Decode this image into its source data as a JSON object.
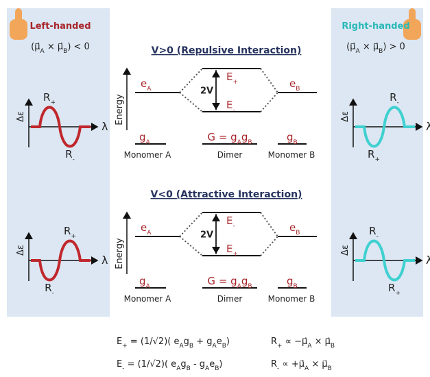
{
  "left": {
    "title": "Left-handed",
    "condition": [
      "(μ⃗",
      "A",
      " × μ⃗",
      "B",
      ") < 0"
    ],
    "top": {
      "y_label": "Δε",
      "x_label": "λ",
      "upper": [
        "R",
        "+"
      ],
      "lower": [
        "R",
        "-"
      ]
    },
    "bottom": {
      "y_label": "Δε",
      "x_label": "λ",
      "upper": [
        "R",
        "+"
      ],
      "lower": [
        "R",
        "-"
      ]
    }
  },
  "right": {
    "title": "Right-handed",
    "condition": [
      "(μ⃗",
      "A",
      " × μ⃗",
      "B",
      ") > 0"
    ],
    "top": {
      "y_label": "Δε",
      "x_label": "λ",
      "upper": [
        "R",
        "-"
      ],
      "lower": [
        "R",
        "+"
      ]
    },
    "bottom": {
      "y_label": "Δε",
      "x_label": "λ",
      "upper": [
        "R",
        "-"
      ],
      "lower": [
        "R",
        "+"
      ]
    }
  },
  "repulsive": {
    "title": "V>0 (Repulsive Interaction)",
    "axis": "Energy",
    "eA": [
      "e",
      "A"
    ],
    "gA": [
      "g",
      "A"
    ],
    "upper": [
      "E",
      "+"
    ],
    "lower": [
      "E",
      "-"
    ],
    "split": "2V",
    "G": [
      "G = g",
      "A",
      "g",
      "B"
    ],
    "eB": [
      "e",
      "B"
    ],
    "gB": [
      "g",
      "B"
    ],
    "monomer_a": "Monomer A",
    "dimer": "Dimer",
    "monomer_b": "Monomer B"
  },
  "attractive": {
    "title": "V<0 (Attractive Interaction)",
    "axis": "Energy",
    "eA": [
      "e",
      "A"
    ],
    "gA": [
      "g",
      "A"
    ],
    "upper": [
      "E",
      "-"
    ],
    "lower": [
      "E",
      "+"
    ],
    "split": "2V",
    "G": [
      "G = g",
      "A",
      "g",
      "B"
    ],
    "eB": [
      "e",
      "B"
    ],
    "gB": [
      "g",
      "B"
    ],
    "monomer_a": "Monomer A",
    "dimer": "Dimer",
    "monomer_b": "Monomer B"
  },
  "equations": {
    "e_plus": [
      "E",
      "+",
      " = (1/√2)( e",
      "A",
      "g",
      "B",
      " + g",
      "A",
      "e",
      "B",
      ")"
    ],
    "e_minus": [
      "E",
      "-",
      " = (1/√2)( e",
      "A",
      "g",
      "B",
      " - g",
      "A",
      "e",
      "B",
      ")"
    ],
    "r_plus": [
      "R",
      "+",
      " ∝ −μ⃗",
      "A",
      " × μ⃗",
      "B"
    ],
    "r_minus": [
      "R",
      "-",
      " ∝ +μ⃗",
      "A",
      " × μ⃗",
      "B"
    ]
  }
}
